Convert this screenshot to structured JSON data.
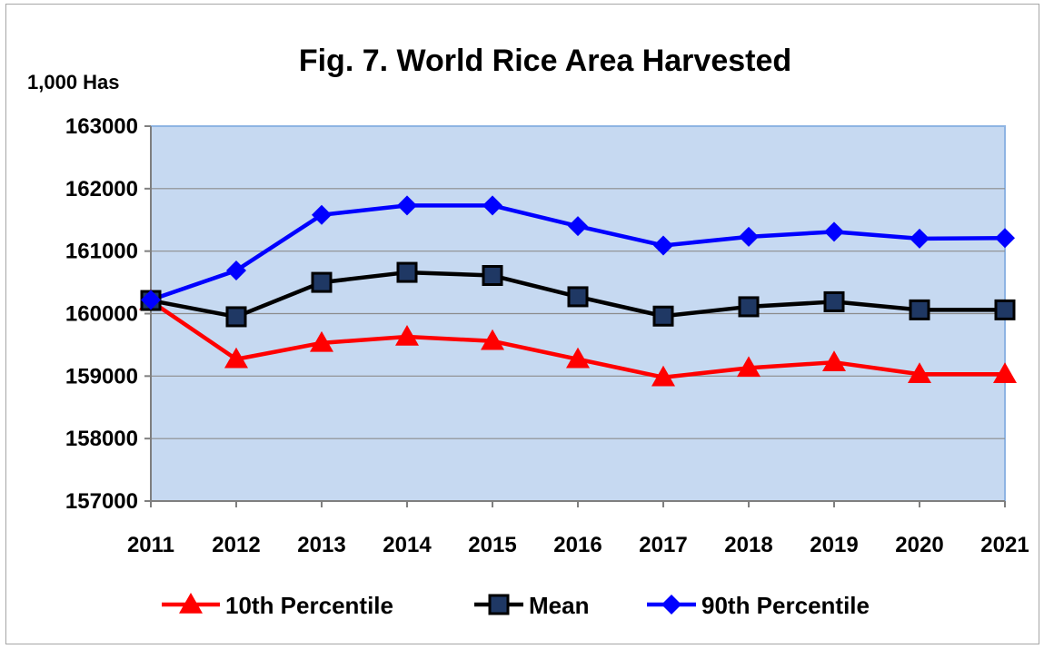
{
  "chart_data": {
    "type": "line",
    "title": "Fig. 7.  World Rice Area Harvested",
    "ylabel": "1,000 Has",
    "xlabel": "",
    "x": [
      "2011",
      "2012",
      "2013",
      "2014",
      "2015",
      "2016",
      "2017",
      "2018",
      "2019",
      "2020",
      "2021"
    ],
    "ylim": [
      157000,
      163000
    ],
    "yticks": [
      "157000",
      "158000",
      "159000",
      "160000",
      "161000",
      "162000",
      "163000"
    ],
    "grid": true,
    "plot_background": "#c6d9f1",
    "legend_position": "bottom",
    "series": [
      {
        "name": "10th Percentile",
        "color": "#ff0000",
        "marker": "triangle",
        "values": [
          160200,
          159270,
          159530,
          159630,
          159560,
          159270,
          158980,
          159130,
          159220,
          159030,
          159030
        ]
      },
      {
        "name": "Mean",
        "color": "#000000",
        "marker": "square",
        "values": [
          160210,
          159950,
          160500,
          160660,
          160610,
          160270,
          159960,
          160110,
          160190,
          160060,
          160060
        ]
      },
      {
        "name": "90th Percentile",
        "color": "#0000ff",
        "marker": "diamond",
        "values": [
          160220,
          160690,
          161580,
          161730,
          161730,
          161400,
          161090,
          161230,
          161310,
          161200,
          161210
        ]
      }
    ]
  }
}
